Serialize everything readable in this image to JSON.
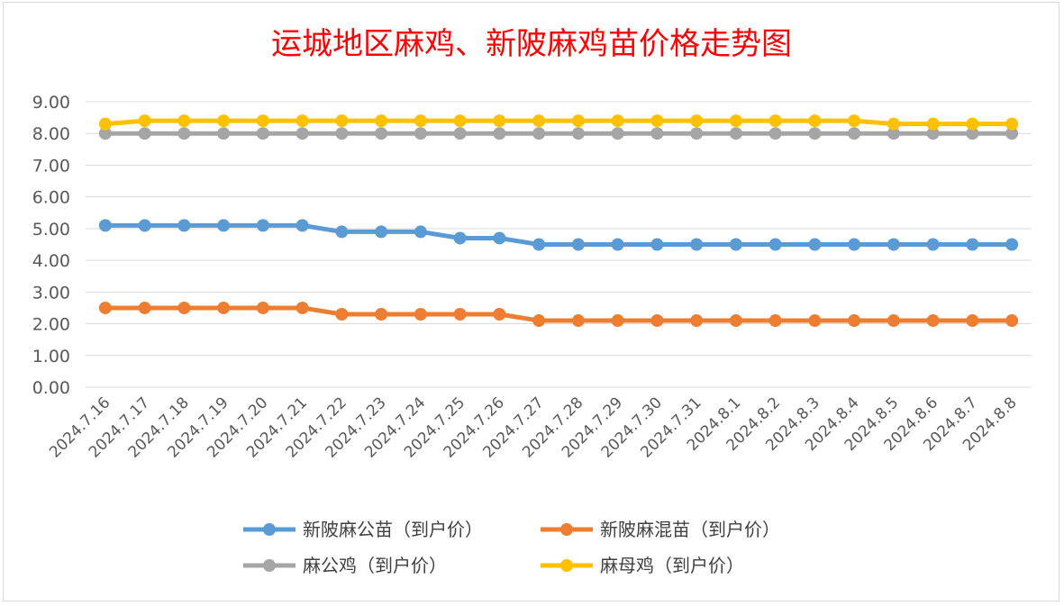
{
  "chart_data": {
    "type": "line",
    "title": "运城地区麻鸡、新陂麻鸡苗价格走势图",
    "xlabel": "",
    "ylabel": "",
    "ylim": [
      0,
      9
    ],
    "y_ticks": [
      "0.00",
      "1.00",
      "2.00",
      "3.00",
      "4.00",
      "5.00",
      "6.00",
      "7.00",
      "8.00",
      "9.00"
    ],
    "grid": true,
    "legend_position": "bottom",
    "categories": [
      "2024.7.16",
      "2024.7.17",
      "2024.7.18",
      "2024.7.19",
      "2024.7.20",
      "2024.7.21",
      "2024.7.22",
      "2024.7.23",
      "2024.7.24",
      "2024.7.25",
      "2024.7.26",
      "2024.7.27",
      "2024.7.28",
      "2024.7.29",
      "2024.7.30",
      "2024.7.31",
      "2024.8.1",
      "2024.8.2",
      "2024.8.3",
      "2024.8.4",
      "2024.8.5",
      "2024.8.6",
      "2024.8.7",
      "2024.8.8"
    ],
    "series": [
      {
        "name": "新陂麻公苗（到户价）",
        "color": "#5b9bd5",
        "values": [
          5.1,
          5.1,
          5.1,
          5.1,
          5.1,
          5.1,
          4.9,
          4.9,
          4.9,
          4.7,
          4.7,
          4.5,
          4.5,
          4.5,
          4.5,
          4.5,
          4.5,
          4.5,
          4.5,
          4.5,
          4.5,
          4.5,
          4.5,
          4.5
        ]
      },
      {
        "name": "新陂麻混苗（到户价）",
        "color": "#ed7d31",
        "values": [
          2.5,
          2.5,
          2.5,
          2.5,
          2.5,
          2.5,
          2.3,
          2.3,
          2.3,
          2.3,
          2.3,
          2.1,
          2.1,
          2.1,
          2.1,
          2.1,
          2.1,
          2.1,
          2.1,
          2.1,
          2.1,
          2.1,
          2.1,
          2.1
        ]
      },
      {
        "name": "麻公鸡（到户价）",
        "color": "#a5a5a5",
        "values": [
          8,
          8,
          8,
          8,
          8,
          8,
          8,
          8,
          8,
          8,
          8,
          8,
          8,
          8,
          8,
          8,
          8,
          8,
          8,
          8,
          8,
          8,
          8,
          8
        ]
      },
      {
        "name": "麻母鸡（到户价）",
        "color": "#ffc000",
        "values": [
          8.3,
          8.4,
          8.4,
          8.4,
          8.4,
          8.4,
          8.4,
          8.4,
          8.4,
          8.4,
          8.4,
          8.4,
          8.4,
          8.4,
          8.4,
          8.4,
          8.4,
          8.4,
          8.4,
          8.4,
          8.3,
          8.3,
          8.3,
          8.3
        ]
      }
    ]
  }
}
